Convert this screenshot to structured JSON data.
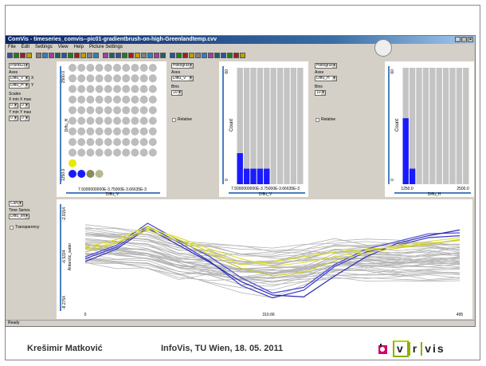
{
  "window": {
    "title": "ComVis - timeseries_comvis--pic01-gradientbrush-on-high-Greenlandtemp.cvv",
    "controls": [
      "_",
      "□",
      "×"
    ]
  },
  "menu": [
    "File",
    "Edit",
    "Settings",
    "View",
    "Help",
    "Picture Settings"
  ],
  "colors": {
    "highlight": "#1a1aff",
    "selected_yellow": "#e8e800",
    "gray_curve": "#b4b4b4",
    "ui_bg": "#d4d0c8",
    "logo_green": "#8ab000"
  },
  "panels": {
    "scatter": {
      "type_select": "Points2D",
      "axes_label": "Axes",
      "x_axis": "Diffu_V",
      "y_axis": "Diffu_H",
      "x_suffix": "X",
      "y_suffix": "Y",
      "scales_label": "Scales",
      "xmin_label": "X min",
      "xmax_label": "X max",
      "ymin_label": "Y min",
      "ymax_label": "Y max",
      "xmin_value": "0",
      "xmax_value": "0",
      "ymin_value": "0",
      "ymax_value": "0",
      "plot": {
        "ylabel": "Diffu_H",
        "ytick_top": "2500.0",
        "ytick_bottom": "1250.0",
        "xlabel": "Diffu_V",
        "xtick": "7.5000000000E-3.75000E-3.66635E-3"
      }
    },
    "hist1": {
      "type_select": "Histogram",
      "axes_label": "Axes",
      "axis": "Diffu_V",
      "bins_label": "Bins",
      "bins_value": "10",
      "relative_label": "Relative",
      "plot": {
        "ylabel": "Count",
        "ytick_top": "60",
        "ytick_bottom": "0",
        "xlabel": "Diffu_V",
        "xtick": "7.5000000000E-3.75000E-3.66635E-3"
      }
    },
    "hist2": {
      "type_select": "Histogram",
      "axes_label": "Axes",
      "axis": "Diffu_H",
      "bins_label": "Bins",
      "bins_value": "10",
      "relative_label": "Relative",
      "plot": {
        "ylabel": "Count",
        "ytick_top": "60",
        "ytick_bottom": "0",
        "xlabel": "Diffu_H",
        "xtick_left": "1250.0",
        "xtick_right": "2500.0"
      }
    },
    "timeseries": {
      "type_select": "Curves",
      "time_series_label": "Time Series",
      "time_series_value": "Diffu_time",
      "transparency_label": "Transparency",
      "plot": {
        "ylabel": "Antarctic_water",
        "ytick_top": "-2.9154",
        "ytick_mid": "-6.5334",
        "ytick_bottom": "-8.2754",
        "xtick_left": "0",
        "xtick_mid": "310.66",
        "xtick_right": "495"
      }
    }
  },
  "status_bar": "Ready",
  "footer": {
    "author": "Krešimir Matković",
    "event": "InfoVis, TU Wien, 18. 05. 2011",
    "logo_parts": [
      "v",
      "r",
      "vis"
    ]
  },
  "chart_data": [
    {
      "type": "scatter",
      "xlabel": "Diffu_V",
      "ylabel": "Diffu_H",
      "grid_columns": 10,
      "grid_rows": 11,
      "highlighted_points": [
        {
          "col": 0,
          "row": 9,
          "color": "#e8e800"
        },
        {
          "col": 0,
          "row": 10,
          "color": "#1a1aff"
        },
        {
          "col": 1,
          "row": 10,
          "color": "#1a1aff"
        },
        {
          "col": 2,
          "row": 10,
          "color": "#8a8a60"
        },
        {
          "col": 3,
          "row": 10,
          "color": "#b8b890"
        }
      ]
    },
    {
      "type": "bar",
      "xlabel": "Diffu_V",
      "ylabel": "Count",
      "ylim": [
        0,
        60
      ],
      "values": [
        16,
        8,
        8,
        8,
        8,
        0,
        0,
        0,
        0,
        0
      ],
      "color": "#1a1aff"
    },
    {
      "type": "bar",
      "xlabel": "Diffu_H",
      "ylabel": "Count",
      "ylim": [
        0,
        60
      ],
      "values": [
        34,
        8,
        0,
        0,
        0,
        0,
        0,
        0,
        0,
        0
      ],
      "color": "#1a1aff"
    },
    {
      "type": "line",
      "ylabel": "Antarctic_water",
      "xlim": [
        0,
        495
      ],
      "highlighted_series": [
        {
          "color": "#3a3ad0",
          "values": [
            0.52,
            0.4,
            0.18,
            0.35,
            0.55,
            0.8,
            0.93,
            0.85,
            0.6,
            0.45,
            0.38,
            0.3,
            0.28
          ]
        },
        {
          "color": "#4848d8",
          "values": [
            0.5,
            0.38,
            0.15,
            0.33,
            0.5,
            0.72,
            0.88,
            0.82,
            0.58,
            0.42,
            0.34,
            0.26,
            0.25
          ]
        },
        {
          "color": "#2a2ab0",
          "values": [
            0.55,
            0.42,
            0.2,
            0.38,
            0.56,
            0.76,
            0.9,
            0.92,
            0.7,
            0.5,
            0.36,
            0.28,
            0.22
          ]
        },
        {
          "color": "#dcdc20",
          "values": [
            0.4,
            0.32,
            0.18,
            0.32,
            0.45,
            0.58,
            0.55,
            0.5,
            0.45,
            0.42,
            0.4,
            0.36,
            0.33
          ]
        },
        {
          "color": "#e0e040",
          "values": [
            0.42,
            0.35,
            0.2,
            0.3,
            0.42,
            0.52,
            0.6,
            0.56,
            0.5,
            0.44,
            0.38,
            0.34,
            0.3
          ]
        },
        {
          "color": "#c8c830",
          "values": [
            0.45,
            0.36,
            0.22,
            0.34,
            0.48,
            0.62,
            0.7,
            0.66,
            0.54,
            0.46,
            0.41,
            0.37,
            0.32
          ]
        }
      ],
      "background_series_count": 40
    }
  ]
}
